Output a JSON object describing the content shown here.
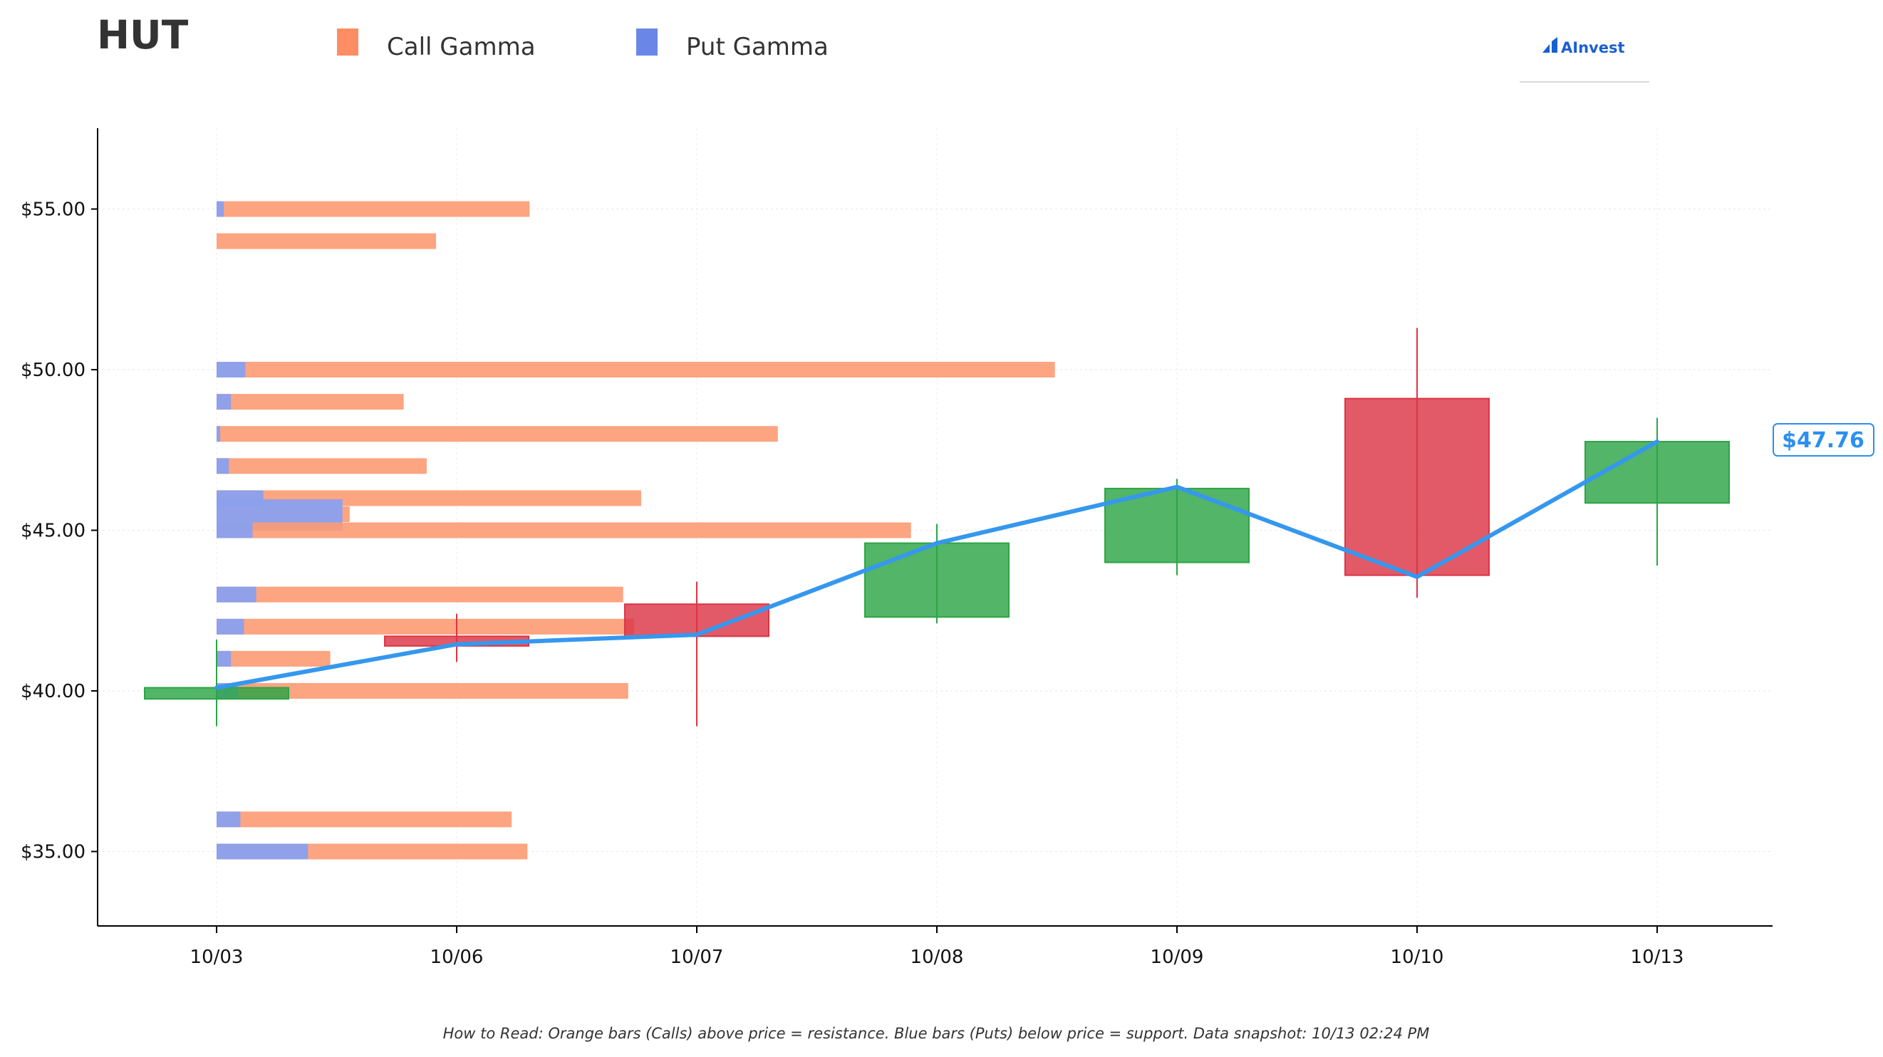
{
  "ticker": "HUT",
  "legend": {
    "call_label": "Call Gamma",
    "put_label": "Put Gamma",
    "call_color": "#fd8d62",
    "put_color": "#6a87e8"
  },
  "logo": {
    "text": "AInvest"
  },
  "footnote": "How to Read: Orange bars (Calls) above price = resistance. Blue bars (Puts) below price = support. Data snapshot: 10/13 02:24 PM",
  "current_price_label": "$47.76",
  "colors": {
    "up": "#2ca545",
    "down": "#dc3545",
    "price_line": "#3597ee",
    "call_bar": "#fd9a72",
    "put_bar": "#8aa0ee"
  },
  "chart_data": {
    "type": "candlestick",
    "title": "HUT",
    "x_categories": [
      "10/03",
      "10/06",
      "10/07",
      "10/08",
      "10/09",
      "10/10",
      "10/13"
    ],
    "y_ticks": [
      35,
      40,
      45,
      50,
      55
    ],
    "y_tick_labels": [
      "$35.00",
      "$40.00",
      "$45.00",
      "$50.00",
      "$55.00"
    ],
    "ylim": [
      32.5,
      57.5
    ],
    "grid": true,
    "legend_position": "top-left",
    "candles": [
      {
        "date": "10/03",
        "open": 39.75,
        "high": 41.6,
        "low": 38.9,
        "close": 40.1
      },
      {
        "date": "10/06",
        "open": 41.7,
        "high": 42.4,
        "low": 40.9,
        "close": 41.4
      },
      {
        "date": "10/07",
        "open": 42.7,
        "high": 43.4,
        "low": 38.9,
        "close": 41.7
      },
      {
        "date": "10/08",
        "open": 42.3,
        "high": 45.2,
        "low": 42.1,
        "close": 44.6
      },
      {
        "date": "10/09",
        "open": 44.0,
        "high": 46.6,
        "low": 43.6,
        "close": 46.3
      },
      {
        "date": "10/10",
        "open": 49.1,
        "high": 51.3,
        "low": 42.9,
        "close": 43.6
      },
      {
        "date": "10/13",
        "open": 45.85,
        "high": 48.5,
        "low": 43.9,
        "close": 47.76
      }
    ],
    "price_line": [
      {
        "date": "10/03",
        "value": 40.1
      },
      {
        "date": "10/06",
        "value": 41.45
      },
      {
        "date": "10/07",
        "value": 41.75
      },
      {
        "date": "10/08",
        "value": 44.6
      },
      {
        "date": "10/09",
        "value": 46.35
      },
      {
        "date": "10/10",
        "value": 43.55
      },
      {
        "date": "10/13",
        "value": 47.76
      }
    ],
    "gamma_by_strike": [
      {
        "strike": 55,
        "call": 4.35,
        "put": 0.1
      },
      {
        "strike": 54,
        "call": 3.05,
        "put": 0.0
      },
      {
        "strike": 50,
        "call": 11.65,
        "put": 0.4
      },
      {
        "strike": 49,
        "call": 2.6,
        "put": 0.2
      },
      {
        "strike": 48,
        "call": 7.8,
        "put": 0.05
      },
      {
        "strike": 47,
        "call": 2.92,
        "put": 0.17
      },
      {
        "strike": 46,
        "call": 5.9,
        "put": 0.65
      },
      {
        "strike": 45.5,
        "call": 1.85,
        "put": 1.75
      },
      {
        "strike": 45,
        "call": 9.65,
        "put": 0.5
      },
      {
        "strike": 43,
        "call": 5.65,
        "put": 0.55
      },
      {
        "strike": 42,
        "call": 5.8,
        "put": 0.38
      },
      {
        "strike": 41,
        "call": 1.58,
        "put": 0.2
      },
      {
        "strike": 40,
        "call": 5.72,
        "put": 0.3
      },
      {
        "strike": 36,
        "call": 4.1,
        "put": 0.33
      },
      {
        "strike": 35,
        "call": 4.32,
        "put": 1.27
      }
    ]
  }
}
